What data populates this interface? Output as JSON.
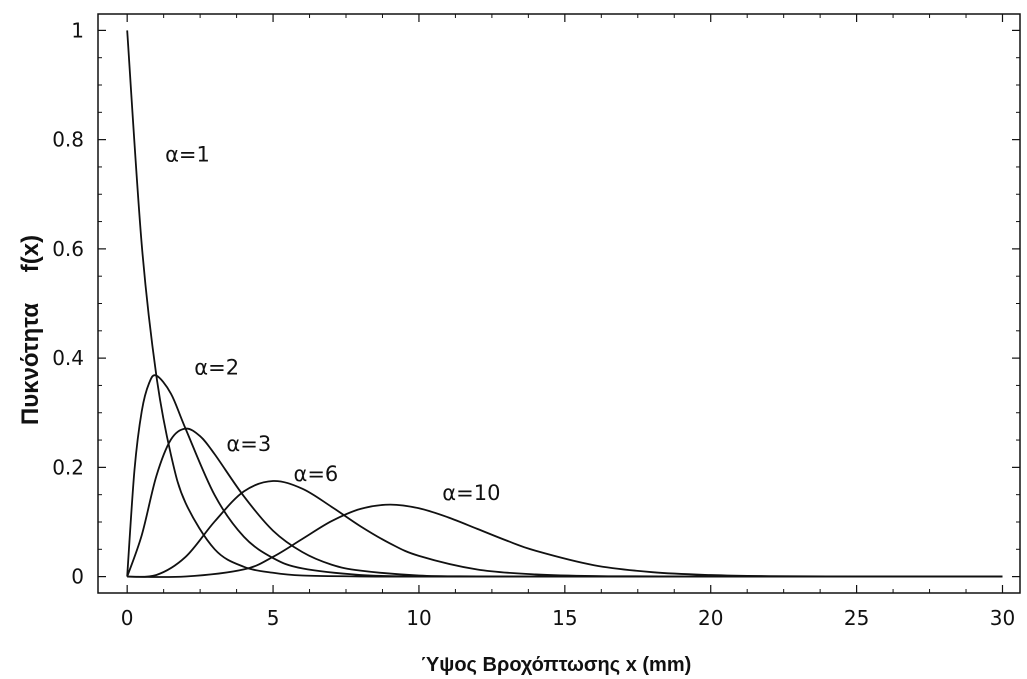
{
  "chart_data": {
    "type": "line",
    "xlabel": "Ύψος Βροχόπτωσης x (mm)",
    "ylabel_text": "Πυκνότητα",
    "ylabel_symbol": "f(x)",
    "xlim": [
      -1,
      30.6
    ],
    "ylim": [
      -0.03,
      1.03
    ],
    "x_ticks": [
      0,
      5,
      10,
      15,
      20,
      25,
      30
    ],
    "x_tick_labels": [
      "0",
      "5",
      "10",
      "15",
      "20",
      "25",
      "30"
    ],
    "y_ticks": [
      0,
      0.2,
      0.4,
      0.6,
      0.8,
      1
    ],
    "y_tick_labels": [
      "0",
      "0.2",
      "0.4",
      "0.6",
      "0.8",
      "1"
    ],
    "grid": false,
    "line_color": "#111111",
    "series": [
      {
        "name": "a=1",
        "label": "α=1",
        "label_at": [
          1.3,
          0.76
        ],
        "x": [
          0,
          0.5,
          1,
          1.5,
          2,
          3,
          4,
          5,
          6,
          8,
          10,
          15,
          20,
          30
        ],
        "y": [
          1.0,
          0.607,
          0.368,
          0.223,
          0.135,
          0.05,
          0.018,
          0.007,
          0.002,
          0.0003,
          0.0,
          0.0,
          0.0,
          0.0
        ]
      },
      {
        "name": "a=2",
        "label": "α=2",
        "label_at": [
          2.3,
          0.37
        ],
        "x": [
          0,
          0.25,
          0.5,
          0.75,
          1,
          1.5,
          2,
          3,
          4,
          5,
          6,
          8,
          10,
          15,
          20,
          30
        ],
        "y": [
          0.0,
          0.195,
          0.303,
          0.354,
          0.368,
          0.335,
          0.271,
          0.149,
          0.073,
          0.034,
          0.015,
          0.003,
          0.0005,
          0.0,
          0.0,
          0.0
        ]
      },
      {
        "name": "a=3",
        "label": "α=3",
        "label_at": [
          3.4,
          0.23
        ],
        "x": [
          0,
          0.5,
          1,
          1.5,
          2,
          2.5,
          3,
          4,
          5,
          6,
          7,
          8,
          10,
          12,
          15,
          20,
          30
        ],
        "y": [
          0.0,
          0.076,
          0.184,
          0.251,
          0.271,
          0.257,
          0.224,
          0.147,
          0.084,
          0.045,
          0.022,
          0.011,
          0.002,
          0.0004,
          0.0,
          0.0,
          0.0
        ]
      },
      {
        "name": "a=6",
        "label": "α=6",
        "label_at": [
          5.7,
          0.175
        ],
        "x": [
          0,
          1,
          2,
          3,
          4,
          5,
          6,
          7,
          8,
          9,
          10,
          12,
          14,
          16,
          20,
          30
        ],
        "y": [
          0.0,
          0.003,
          0.036,
          0.101,
          0.156,
          0.175,
          0.161,
          0.128,
          0.092,
          0.061,
          0.038,
          0.013,
          0.004,
          0.001,
          0.0,
          0.0
        ]
      },
      {
        "name": "a=10",
        "label": "α=10",
        "label_at": [
          10.8,
          0.14
        ],
        "x": [
          0,
          2,
          4,
          5,
          6,
          7,
          8,
          9,
          10,
          11,
          12,
          13,
          14,
          16,
          18,
          20,
          22,
          25,
          30
        ],
        "y": [
          0.0,
          0.0002,
          0.0132,
          0.0363,
          0.0688,
          0.1014,
          0.124,
          0.1318,
          0.1251,
          0.1085,
          0.0874,
          0.0661,
          0.0473,
          0.0209,
          0.0081,
          0.0029,
          0.0009,
          0.0001,
          0.0
        ]
      }
    ]
  }
}
